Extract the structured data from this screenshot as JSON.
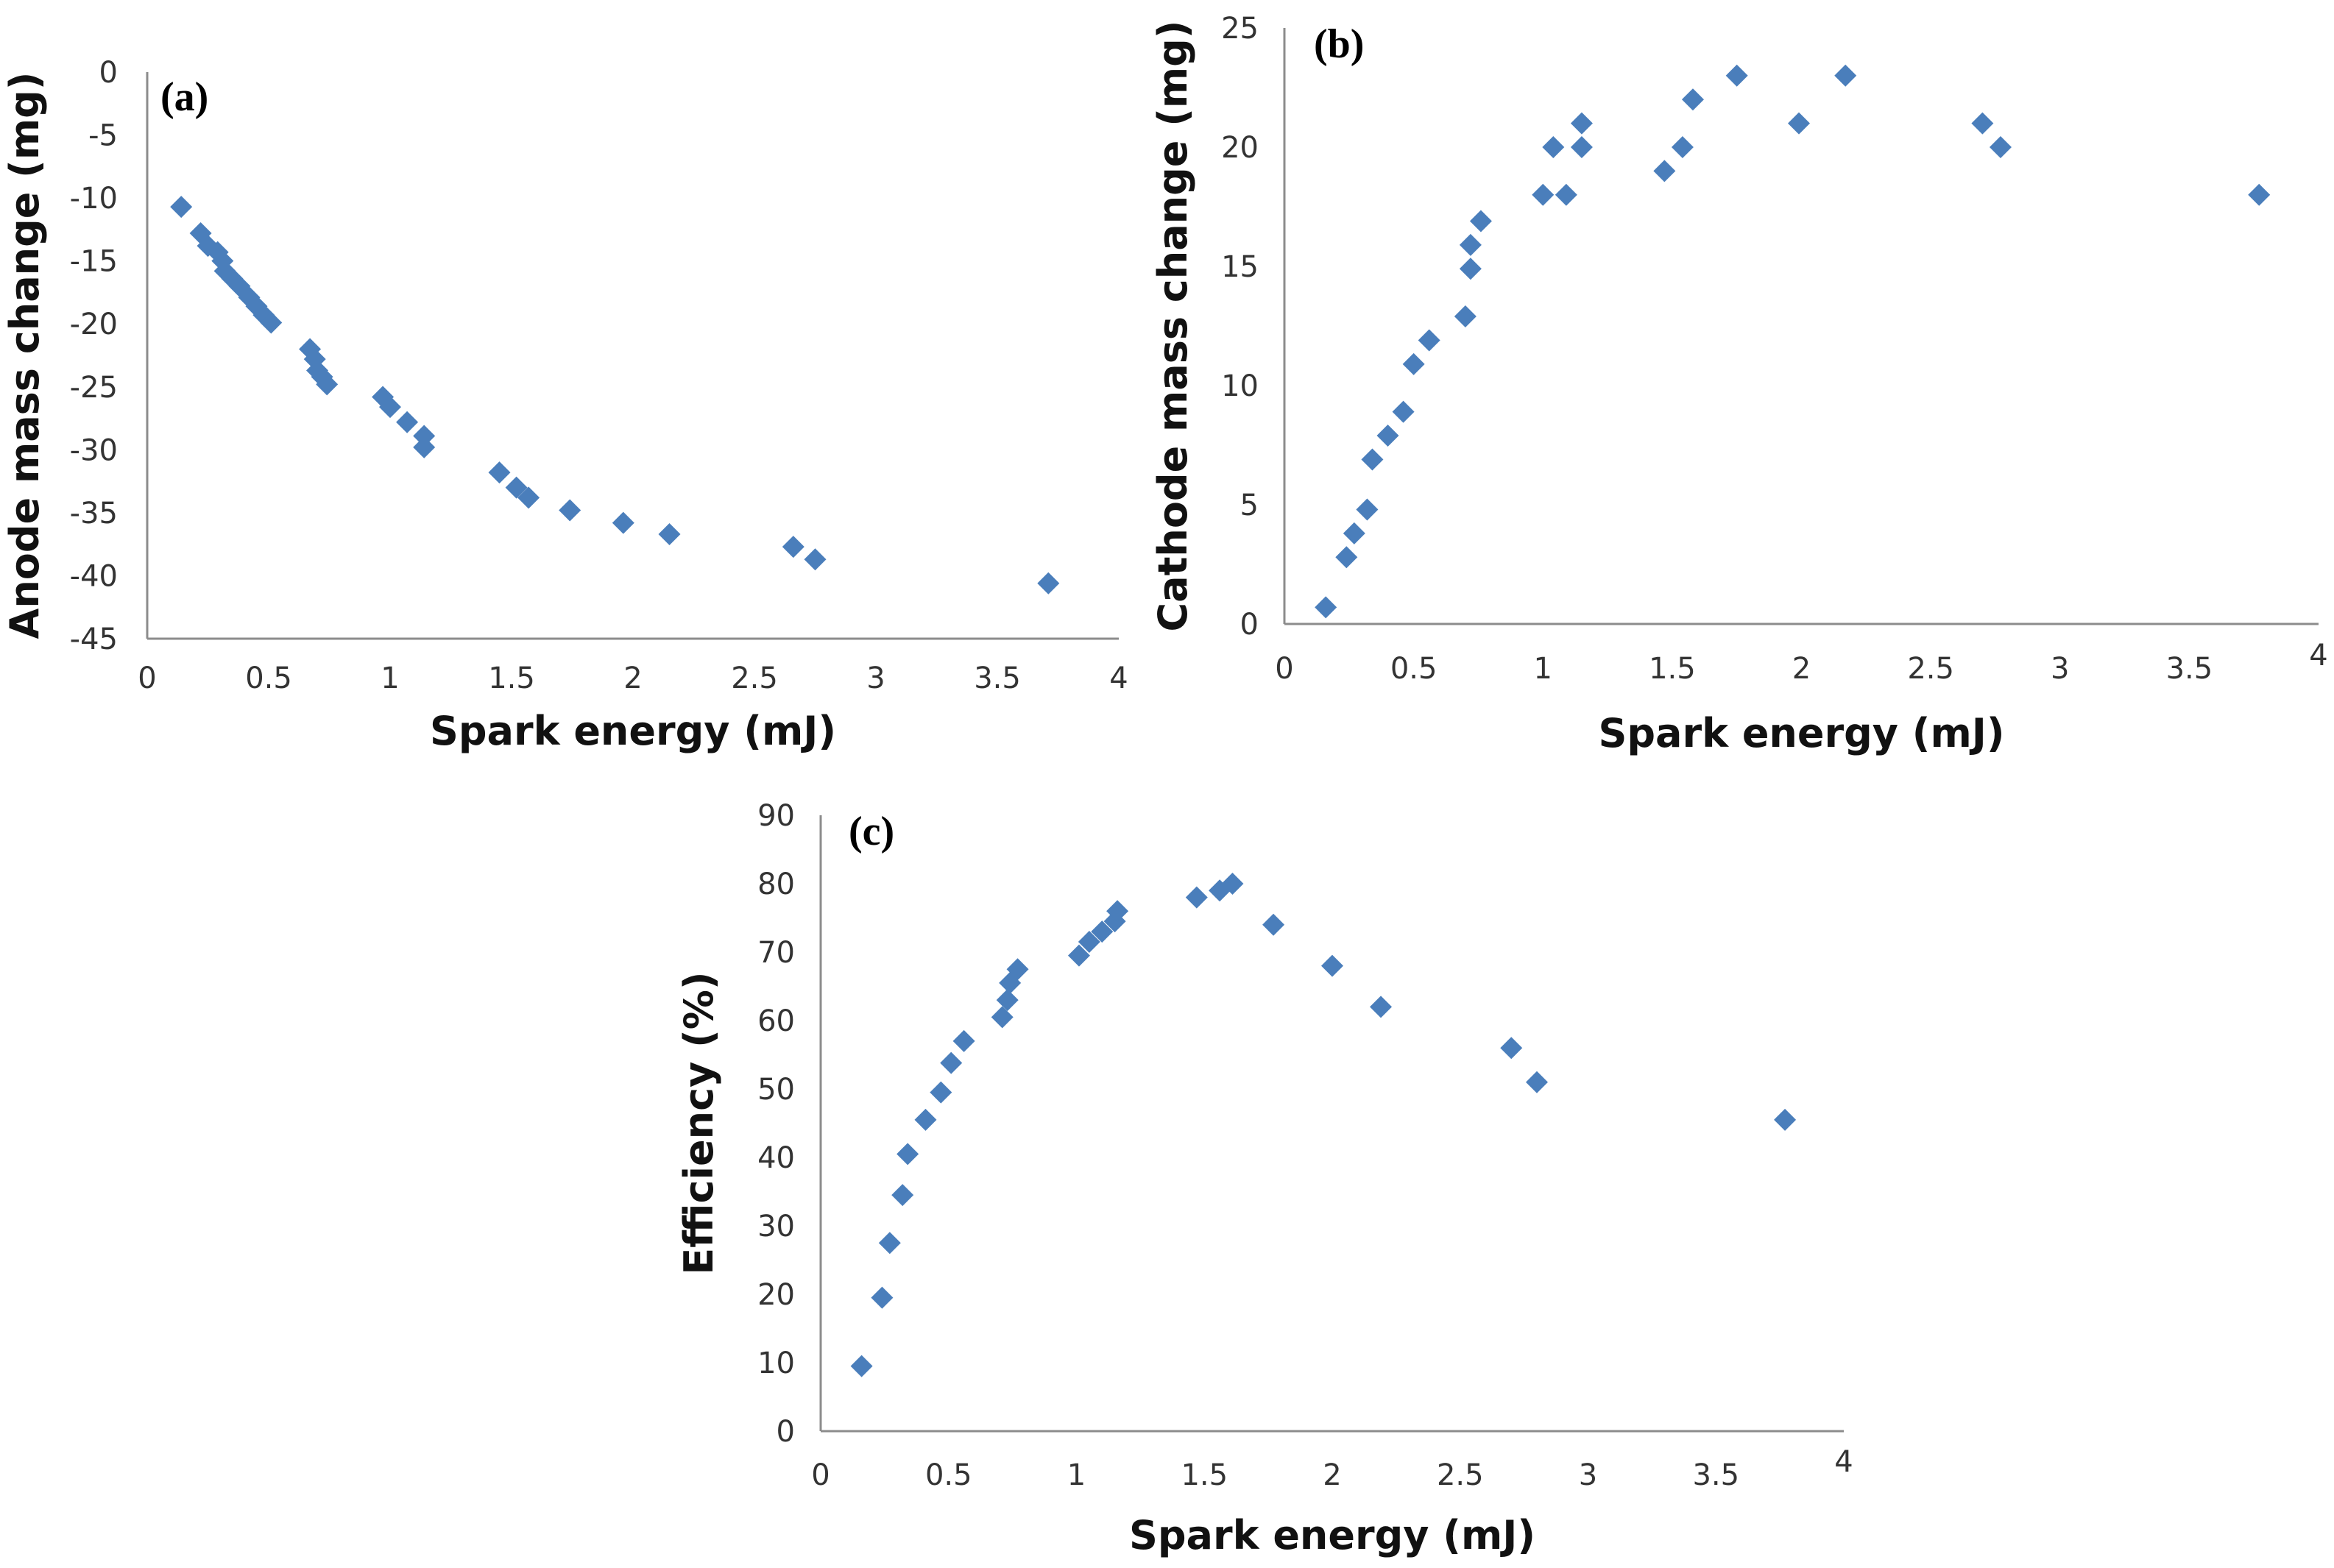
{
  "marker_color": "#4a7ebb",
  "chart_data": [
    {
      "type": "scatter",
      "panel_label": "(a)",
      "xlabel": "Spark energy (mJ)",
      "ylabel": "Anode mass change (mg)",
      "xlim": [
        0,
        4
      ],
      "ylim": [
        -45,
        0
      ],
      "xticks": [
        "0",
        "0.5",
        "1",
        "1.5",
        "2",
        "2.5",
        "3",
        "3.5",
        "4"
      ],
      "yticks": [
        "0",
        "-5",
        "-10",
        "-15",
        "-20",
        "-25",
        "-30",
        "-35",
        "-40",
        "-45"
      ],
      "x": [
        0.14,
        0.22,
        0.25,
        0.29,
        0.31,
        0.32,
        0.35,
        0.38,
        0.42,
        0.45,
        0.48,
        0.51,
        0.67,
        0.69,
        0.7,
        0.72,
        0.74,
        0.97,
        1.0,
        1.07,
        1.14,
        1.14,
        1.45,
        1.52,
        1.57,
        1.74,
        1.96,
        2.15,
        2.66,
        2.75,
        3.71
      ],
      "y": [
        -10.7,
        -12.8,
        -13.8,
        -14.3,
        -15.0,
        -15.8,
        -16.4,
        -17.0,
        -17.9,
        -18.6,
        -19.3,
        -19.9,
        -22.0,
        -22.8,
        -23.7,
        -24.2,
        -24.8,
        -25.8,
        -26.6,
        -27.8,
        -28.9,
        -29.8,
        -31.8,
        -33.0,
        -33.8,
        -34.8,
        -35.8,
        -36.7,
        -37.7,
        -38.7,
        -40.6
      ]
    },
    {
      "type": "scatter",
      "panel_label": "(b)",
      "xlabel": "Spark energy (mJ)",
      "ylabel": "Cathode mass change (mg)",
      "xlim": [
        0,
        4
      ],
      "ylim": [
        0,
        25
      ],
      "xticks": [
        "0",
        "0.5",
        "1",
        "1.5",
        "2",
        "2.5",
        "3",
        "3.5",
        "4"
      ],
      "yticks": [
        "0",
        "5",
        "10",
        "15",
        "20",
        "25"
      ],
      "x": [
        0.16,
        0.24,
        0.27,
        0.32,
        0.34,
        0.4,
        0.46,
        0.5,
        0.56,
        0.7,
        0.72,
        0.72,
        0.76,
        1.0,
        1.04,
        1.09,
        1.15,
        1.15,
        1.47,
        1.54,
        1.58,
        1.75,
        1.99,
        2.17,
        2.7,
        2.77,
        3.77
      ],
      "y": [
        0.7,
        2.8,
        3.8,
        4.8,
        6.9,
        7.9,
        8.9,
        10.9,
        11.9,
        12.9,
        14.9,
        15.9,
        16.9,
        18.0,
        20.0,
        18.0,
        21.0,
        20.0,
        19.0,
        20.0,
        22.0,
        23.0,
        21.0,
        23.0,
        21.0,
        20.0,
        18.0
      ]
    },
    {
      "type": "scatter",
      "panel_label": "(c)",
      "xlabel": "Spark energy (mJ)",
      "ylabel": "Efficiency (%)",
      "xlim": [
        0,
        4
      ],
      "ylim": [
        0,
        90
      ],
      "xticks": [
        "0",
        "0.5",
        "1",
        "1.5",
        "2",
        "2.5",
        "3",
        "3.5",
        "4"
      ],
      "yticks": [
        "0",
        "10",
        "20",
        "30",
        "40",
        "50",
        "60",
        "70",
        "80",
        "90"
      ],
      "x": [
        0.16,
        0.24,
        0.27,
        0.32,
        0.34,
        0.41,
        0.47,
        0.51,
        0.56,
        0.71,
        0.73,
        0.74,
        0.77,
        1.01,
        1.05,
        1.1,
        1.15,
        1.16,
        1.47,
        1.56,
        1.61,
        1.77,
        2.0,
        2.19,
        2.7,
        2.8,
        3.77
      ],
      "y": [
        9.5,
        19.5,
        27.5,
        34.5,
        40.5,
        45.5,
        49.5,
        53.8,
        57.0,
        60.5,
        63.0,
        65.5,
        67.5,
        69.5,
        71.5,
        73.0,
        74.5,
        76.0,
        78.0,
        79.0,
        80.0,
        74.0,
        68.0,
        62.0,
        56.0,
        51.0,
        45.5
      ]
    }
  ]
}
